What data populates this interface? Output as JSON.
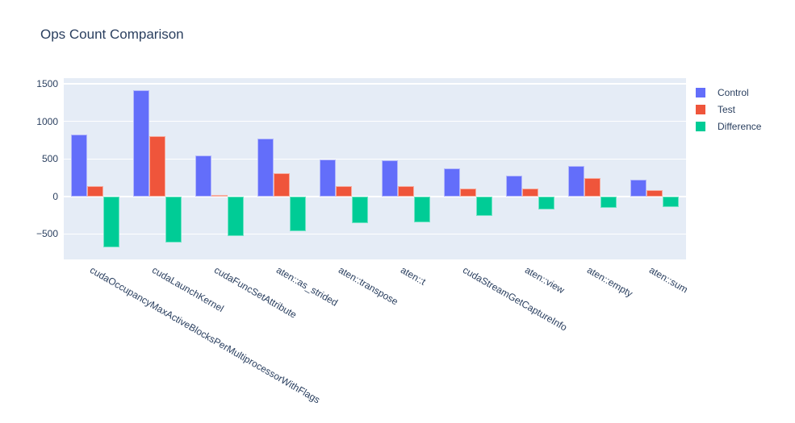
{
  "title": "Ops Count Comparison",
  "legend": {
    "items": [
      {
        "label": "Control",
        "color": "#636EFA"
      },
      {
        "label": "Test",
        "color": "#EF553B"
      },
      {
        "label": "Difference",
        "color": "#00CC96"
      }
    ]
  },
  "y_axis": {
    "ticks": [
      {
        "value": -500,
        "label": "−500"
      },
      {
        "value": 0,
        "label": "0"
      },
      {
        "value": 500,
        "label": "500"
      },
      {
        "value": 1000,
        "label": "1000"
      },
      {
        "value": 1500,
        "label": "1500"
      }
    ]
  },
  "chart_data": {
    "type": "bar",
    "title": "Ops Count Comparison",
    "xlabel": "",
    "ylabel": "",
    "categories": [
      "cudaOccupancyMaxActiveBlocksPerMultiprocessorWithFlags",
      "cudaLaunchKernel",
      "cudaFuncSetAttribute",
      "aten::as_strided",
      "aten::transpose",
      "aten::t",
      "cudaStreamGetCaptureInfo",
      "aten::view",
      "aten::empty",
      "aten::sum"
    ],
    "series": [
      {
        "name": "Control",
        "color": "#636EFA",
        "border_color": "#B3B8FC",
        "values": [
          820,
          1420,
          550,
          770,
          495,
          480,
          370,
          275,
          405,
          220
        ]
      },
      {
        "name": "Test",
        "color": "#EF553B",
        "border_color": "#F7AC9E",
        "values": [
          140,
          805,
          20,
          305,
          140,
          135,
          110,
          100,
          250,
          80
        ]
      },
      {
        "name": "Difference",
        "color": "#00CC96",
        "border_color": "#73E4C6",
        "values": [
          -680,
          -615,
          -530,
          -465,
          -355,
          -345,
          -260,
          -175,
          -155,
          -140
        ]
      }
    ],
    "ylim": [
      -840,
      1577
    ],
    "yticks": [
      -500,
      0,
      500,
      1000,
      1500
    ],
    "grid": true,
    "zeroline": true,
    "tickangle": 30,
    "legend_position": "right",
    "plot_bgcolor": "#E5ECF6",
    "paper_bgcolor": "#FFFFFF",
    "gridline_color": "#FFFFFF",
    "text_color": "#2a3f5f"
  }
}
